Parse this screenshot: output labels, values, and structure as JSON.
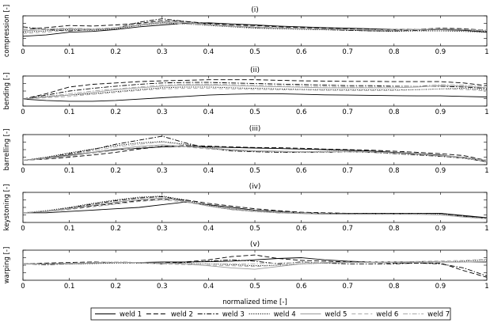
{
  "chart_data": {
    "type": "line",
    "xlabel": "normalized time [-]",
    "x": [
      0,
      0.05,
      0.1,
      0.15,
      0.2,
      0.25,
      0.3,
      0.35,
      0.4,
      0.45,
      0.5,
      0.55,
      0.6,
      0.65,
      0.7,
      0.75,
      0.8,
      0.85,
      0.9,
      0.95,
      1
    ],
    "xticks": [
      "0",
      "0.1",
      "0.2",
      "0.3",
      "0.4",
      "0.5",
      "0.6",
      "0.7",
      "0.8",
      "0.9",
      "1"
    ],
    "ylim": [
      0,
      1
    ],
    "legend": {
      "position": "bottom",
      "entries": [
        "weld 1",
        "weld 2",
        "weld 3",
        "weld 4",
        "weld 5",
        "weld 6",
        "weld 7"
      ]
    },
    "panels": [
      {
        "title": "(i)",
        "ylabel": "compression [-]",
        "series": [
          {
            "name": "weld 1",
            "values": [
              0.3,
              0.35,
              0.45,
              0.48,
              0.55,
              0.65,
              0.72,
              0.78,
              0.8,
              0.76,
              0.72,
              0.68,
              0.65,
              0.62,
              0.6,
              0.58,
              0.55,
              0.55,
              0.54,
              0.52,
              0.45
            ]
          },
          {
            "name": "weld 2",
            "values": [
              0.55,
              0.62,
              0.7,
              0.68,
              0.72,
              0.78,
              0.88,
              0.85,
              0.78,
              0.72,
              0.7,
              0.65,
              0.62,
              0.6,
              0.58,
              0.56,
              0.55,
              0.56,
              0.6,
              0.58,
              0.52
            ]
          },
          {
            "name": "weld 3",
            "values": [
              0.65,
              0.55,
              0.5,
              0.55,
              0.6,
              0.82,
              0.95,
              0.85,
              0.75,
              0.68,
              0.62,
              0.6,
              0.58,
              0.55,
              0.52,
              0.5,
              0.5,
              0.52,
              0.55,
              0.55,
              0.48
            ]
          },
          {
            "name": "weld 4",
            "values": [
              0.45,
              0.5,
              0.55,
              0.52,
              0.58,
              0.7,
              0.8,
              0.76,
              0.7,
              0.65,
              0.6,
              0.58,
              0.56,
              0.54,
              0.52,
              0.5,
              0.48,
              0.5,
              0.5,
              0.48,
              0.45
            ]
          },
          {
            "name": "weld 5",
            "values": [
              0.5,
              0.55,
              0.58,
              0.56,
              0.6,
              0.72,
              0.82,
              0.8,
              0.72,
              0.68,
              0.64,
              0.6,
              0.58,
              0.56,
              0.55,
              0.52,
              0.52,
              0.54,
              0.56,
              0.55,
              0.5
            ]
          },
          {
            "name": "weld 6",
            "values": [
              0.4,
              0.45,
              0.52,
              0.55,
              0.62,
              0.75,
              0.85,
              0.82,
              0.75,
              0.7,
              0.66,
              0.62,
              0.6,
              0.58,
              0.56,
              0.55,
              0.54,
              0.56,
              0.58,
              0.56,
              0.52
            ]
          },
          {
            "name": "weld 7",
            "values": [
              0.55,
              0.58,
              0.6,
              0.58,
              0.62,
              0.7,
              0.78,
              0.76,
              0.7,
              0.66,
              0.62,
              0.6,
              0.58,
              0.57,
              0.55,
              0.54,
              0.53,
              0.55,
              0.57,
              0.55,
              0.5
            ]
          }
        ]
      },
      {
        "title": "(ii)",
        "ylabel": "bending [-]",
        "series": [
          {
            "name": "weld 1",
            "values": [
              0.2,
              0.15,
              0.12,
              0.12,
              0.15,
              0.2,
              0.25,
              0.3,
              0.35,
              0.38,
              0.4,
              0.4,
              0.38,
              0.36,
              0.35,
              0.34,
              0.33,
              0.32,
              0.32,
              0.3,
              0.28
            ]
          },
          {
            "name": "weld 2",
            "values": [
              0.2,
              0.4,
              0.65,
              0.75,
              0.8,
              0.85,
              0.88,
              0.9,
              0.92,
              0.92,
              0.92,
              0.9,
              0.88,
              0.87,
              0.86,
              0.86,
              0.85,
              0.85,
              0.85,
              0.8,
              0.7
            ]
          },
          {
            "name": "weld 3",
            "values": [
              0.2,
              0.35,
              0.5,
              0.6,
              0.68,
              0.75,
              0.8,
              0.82,
              0.82,
              0.8,
              0.78,
              0.76,
              0.74,
              0.72,
              0.7,
              0.7,
              0.68,
              0.68,
              0.68,
              0.65,
              0.6
            ]
          },
          {
            "name": "weld 4",
            "values": [
              0.2,
              0.3,
              0.35,
              0.4,
              0.48,
              0.55,
              0.62,
              0.65,
              0.65,
              0.62,
              0.6,
              0.58,
              0.56,
              0.55,
              0.55,
              0.54,
              0.54,
              0.55,
              0.58,
              0.6,
              0.55
            ]
          },
          {
            "name": "weld 5",
            "values": [
              0.2,
              0.28,
              0.35,
              0.45,
              0.55,
              0.62,
              0.68,
              0.72,
              0.72,
              0.7,
              0.68,
              0.66,
              0.64,
              0.62,
              0.62,
              0.62,
              0.62,
              0.65,
              0.7,
              0.68,
              0.62
            ]
          },
          {
            "name": "weld 6",
            "values": [
              0.2,
              0.25,
              0.3,
              0.38,
              0.45,
              0.52,
              0.58,
              0.6,
              0.6,
              0.58,
              0.56,
              0.55,
              0.54,
              0.53,
              0.52,
              0.52,
              0.52,
              0.55,
              0.58,
              0.56,
              0.5
            ]
          },
          {
            "name": "weld 7",
            "values": [
              0.2,
              0.3,
              0.4,
              0.5,
              0.58,
              0.65,
              0.72,
              0.76,
              0.76,
              0.74,
              0.72,
              0.7,
              0.68,
              0.66,
              0.65,
              0.65,
              0.66,
              0.68,
              0.74,
              0.72,
              0.66
            ]
          }
        ]
      },
      {
        "title": "(iii)",
        "ylabel": "barrelling [-]",
        "series": [
          {
            "name": "weld 1",
            "values": [
              0.1,
              0.2,
              0.3,
              0.4,
              0.5,
              0.55,
              0.6,
              0.62,
              0.6,
              0.58,
              0.56,
              0.54,
              0.52,
              0.5,
              0.48,
              0.45,
              0.4,
              0.35,
              0.3,
              0.2,
              0.05
            ]
          },
          {
            "name": "weld 2",
            "values": [
              0.1,
              0.15,
              0.22,
              0.3,
              0.4,
              0.52,
              0.62,
              0.65,
              0.63,
              0.6,
              0.58,
              0.57,
              0.55,
              0.52,
              0.5,
              0.48,
              0.44,
              0.4,
              0.35,
              0.28,
              0.1
            ]
          },
          {
            "name": "weld 3",
            "values": [
              0.1,
              0.2,
              0.35,
              0.5,
              0.7,
              0.85,
              1.0,
              0.75,
              0.55,
              0.45,
              0.42,
              0.4,
              0.4,
              0.4,
              0.42,
              0.4,
              0.35,
              0.3,
              0.25,
              0.18,
              0.05
            ]
          },
          {
            "name": "weld 4",
            "values": [
              0.1,
              0.22,
              0.38,
              0.52,
              0.65,
              0.75,
              0.8,
              0.7,
              0.58,
              0.48,
              0.44,
              0.42,
              0.42,
              0.43,
              0.45,
              0.42,
              0.38,
              0.33,
              0.28,
              0.2,
              0.08
            ]
          },
          {
            "name": "weld 5",
            "values": [
              0.1,
              0.18,
              0.28,
              0.4,
              0.52,
              0.62,
              0.68,
              0.62,
              0.55,
              0.5,
              0.46,
              0.44,
              0.42,
              0.42,
              0.44,
              0.42,
              0.38,
              0.34,
              0.28,
              0.22,
              0.1
            ]
          },
          {
            "name": "weld 6",
            "values": [
              0.1,
              0.16,
              0.25,
              0.36,
              0.48,
              0.58,
              0.65,
              0.6,
              0.52,
              0.48,
              0.44,
              0.42,
              0.4,
              0.4,
              0.42,
              0.4,
              0.36,
              0.32,
              0.26,
              0.18,
              0.06
            ]
          },
          {
            "name": "weld 7",
            "values": [
              0.1,
              0.2,
              0.32,
              0.45,
              0.6,
              0.7,
              0.78,
              0.68,
              0.56,
              0.5,
              0.46,
              0.44,
              0.42,
              0.42,
              0.44,
              0.42,
              0.38,
              0.33,
              0.28,
              0.2,
              0.08
            ]
          }
        ]
      },
      {
        "title": "(iv)",
        "ylabel": "keystoning [-]",
        "series": [
          {
            "name": "weld 1",
            "values": [
              0.3,
              0.3,
              0.35,
              0.4,
              0.45,
              0.5,
              0.6,
              0.7,
              0.6,
              0.5,
              0.4,
              0.35,
              0.3,
              0.28,
              0.28,
              0.28,
              0.28,
              0.28,
              0.28,
              0.2,
              0.12
            ]
          },
          {
            "name": "weld 2",
            "values": [
              0.3,
              0.35,
              0.45,
              0.55,
              0.65,
              0.75,
              0.8,
              0.78,
              0.65,
              0.55,
              0.45,
              0.38,
              0.32,
              0.3,
              0.28,
              0.28,
              0.28,
              0.28,
              0.28,
              0.18,
              0.1
            ]
          },
          {
            "name": "weld 3",
            "values": [
              0.3,
              0.35,
              0.48,
              0.62,
              0.75,
              0.85,
              0.9,
              0.75,
              0.55,
              0.42,
              0.35,
              0.3,
              0.28,
              0.25,
              0.25,
              0.25,
              0.26,
              0.28,
              0.28,
              0.18,
              0.1
            ]
          },
          {
            "name": "weld 4",
            "values": [
              0.3,
              0.38,
              0.5,
              0.65,
              0.78,
              0.88,
              0.92,
              0.78,
              0.58,
              0.45,
              0.38,
              0.32,
              0.28,
              0.26,
              0.25,
              0.25,
              0.25,
              0.25,
              0.25,
              0.15,
              0.08
            ]
          },
          {
            "name": "weld 5",
            "values": [
              0.3,
              0.36,
              0.46,
              0.58,
              0.7,
              0.8,
              0.85,
              0.72,
              0.55,
              0.42,
              0.35,
              0.3,
              0.27,
              0.25,
              0.24,
              0.24,
              0.24,
              0.24,
              0.22,
              0.14,
              0.08
            ]
          },
          {
            "name": "weld 6",
            "values": [
              0.3,
              0.34,
              0.42,
              0.52,
              0.62,
              0.72,
              0.78,
              0.7,
              0.55,
              0.45,
              0.38,
              0.33,
              0.3,
              0.27,
              0.26,
              0.25,
              0.25,
              0.24,
              0.22,
              0.14,
              0.08
            ]
          },
          {
            "name": "weld 7",
            "values": [
              0.3,
              0.36,
              0.46,
              0.58,
              0.68,
              0.78,
              0.84,
              0.74,
              0.57,
              0.45,
              0.38,
              0.33,
              0.29,
              0.27,
              0.26,
              0.26,
              0.26,
              0.26,
              0.25,
              0.16,
              0.09
            ]
          }
        ]
      },
      {
        "title": "(v)",
        "ylabel": "warping [-]",
        "series": [
          {
            "name": "weld 1",
            "values": [
              0.55,
              0.55,
              0.56,
              0.58,
              0.6,
              0.6,
              0.62,
              0.62,
              0.63,
              0.65,
              0.7,
              0.75,
              0.78,
              0.7,
              0.65,
              0.62,
              0.62,
              0.62,
              0.62,
              0.62,
              0.62
            ]
          },
          {
            "name": "weld 2",
            "values": [
              0.55,
              0.58,
              0.6,
              0.62,
              0.6,
              0.58,
              0.58,
              0.62,
              0.7,
              0.82,
              0.88,
              0.75,
              0.68,
              0.65,
              0.62,
              0.6,
              0.58,
              0.58,
              0.58,
              0.3,
              0.05
            ]
          },
          {
            "name": "weld 3",
            "values": [
              0.55,
              0.52,
              0.55,
              0.58,
              0.62,
              0.6,
              0.55,
              0.6,
              0.65,
              0.7,
              0.65,
              0.55,
              0.62,
              0.58,
              0.55,
              0.55,
              0.55,
              0.58,
              0.55,
              0.4,
              0.1
            ]
          },
          {
            "name": "weld 4",
            "values": [
              0.55,
              0.55,
              0.55,
              0.56,
              0.58,
              0.58,
              0.58,
              0.56,
              0.55,
              0.52,
              0.48,
              0.5,
              0.55,
              0.58,
              0.6,
              0.6,
              0.62,
              0.62,
              0.62,
              0.65,
              0.7
            ]
          },
          {
            "name": "weld 5",
            "values": [
              0.55,
              0.55,
              0.56,
              0.58,
              0.6,
              0.6,
              0.58,
              0.55,
              0.48,
              0.4,
              0.35,
              0.45,
              0.55,
              0.58,
              0.6,
              0.6,
              0.6,
              0.6,
              0.62,
              0.62,
              0.6
            ]
          },
          {
            "name": "weld 6",
            "values": [
              0.55,
              0.56,
              0.58,
              0.6,
              0.6,
              0.58,
              0.55,
              0.52,
              0.5,
              0.48,
              0.45,
              0.5,
              0.56,
              0.6,
              0.62,
              0.62,
              0.62,
              0.64,
              0.66,
              0.68,
              0.72
            ]
          },
          {
            "name": "weld 7",
            "values": [
              0.55,
              0.55,
              0.57,
              0.6,
              0.62,
              0.6,
              0.58,
              0.56,
              0.55,
              0.55,
              0.55,
              0.58,
              0.6,
              0.6,
              0.6,
              0.6,
              0.6,
              0.62,
              0.64,
              0.62,
              0.6
            ]
          }
        ]
      }
    ]
  }
}
